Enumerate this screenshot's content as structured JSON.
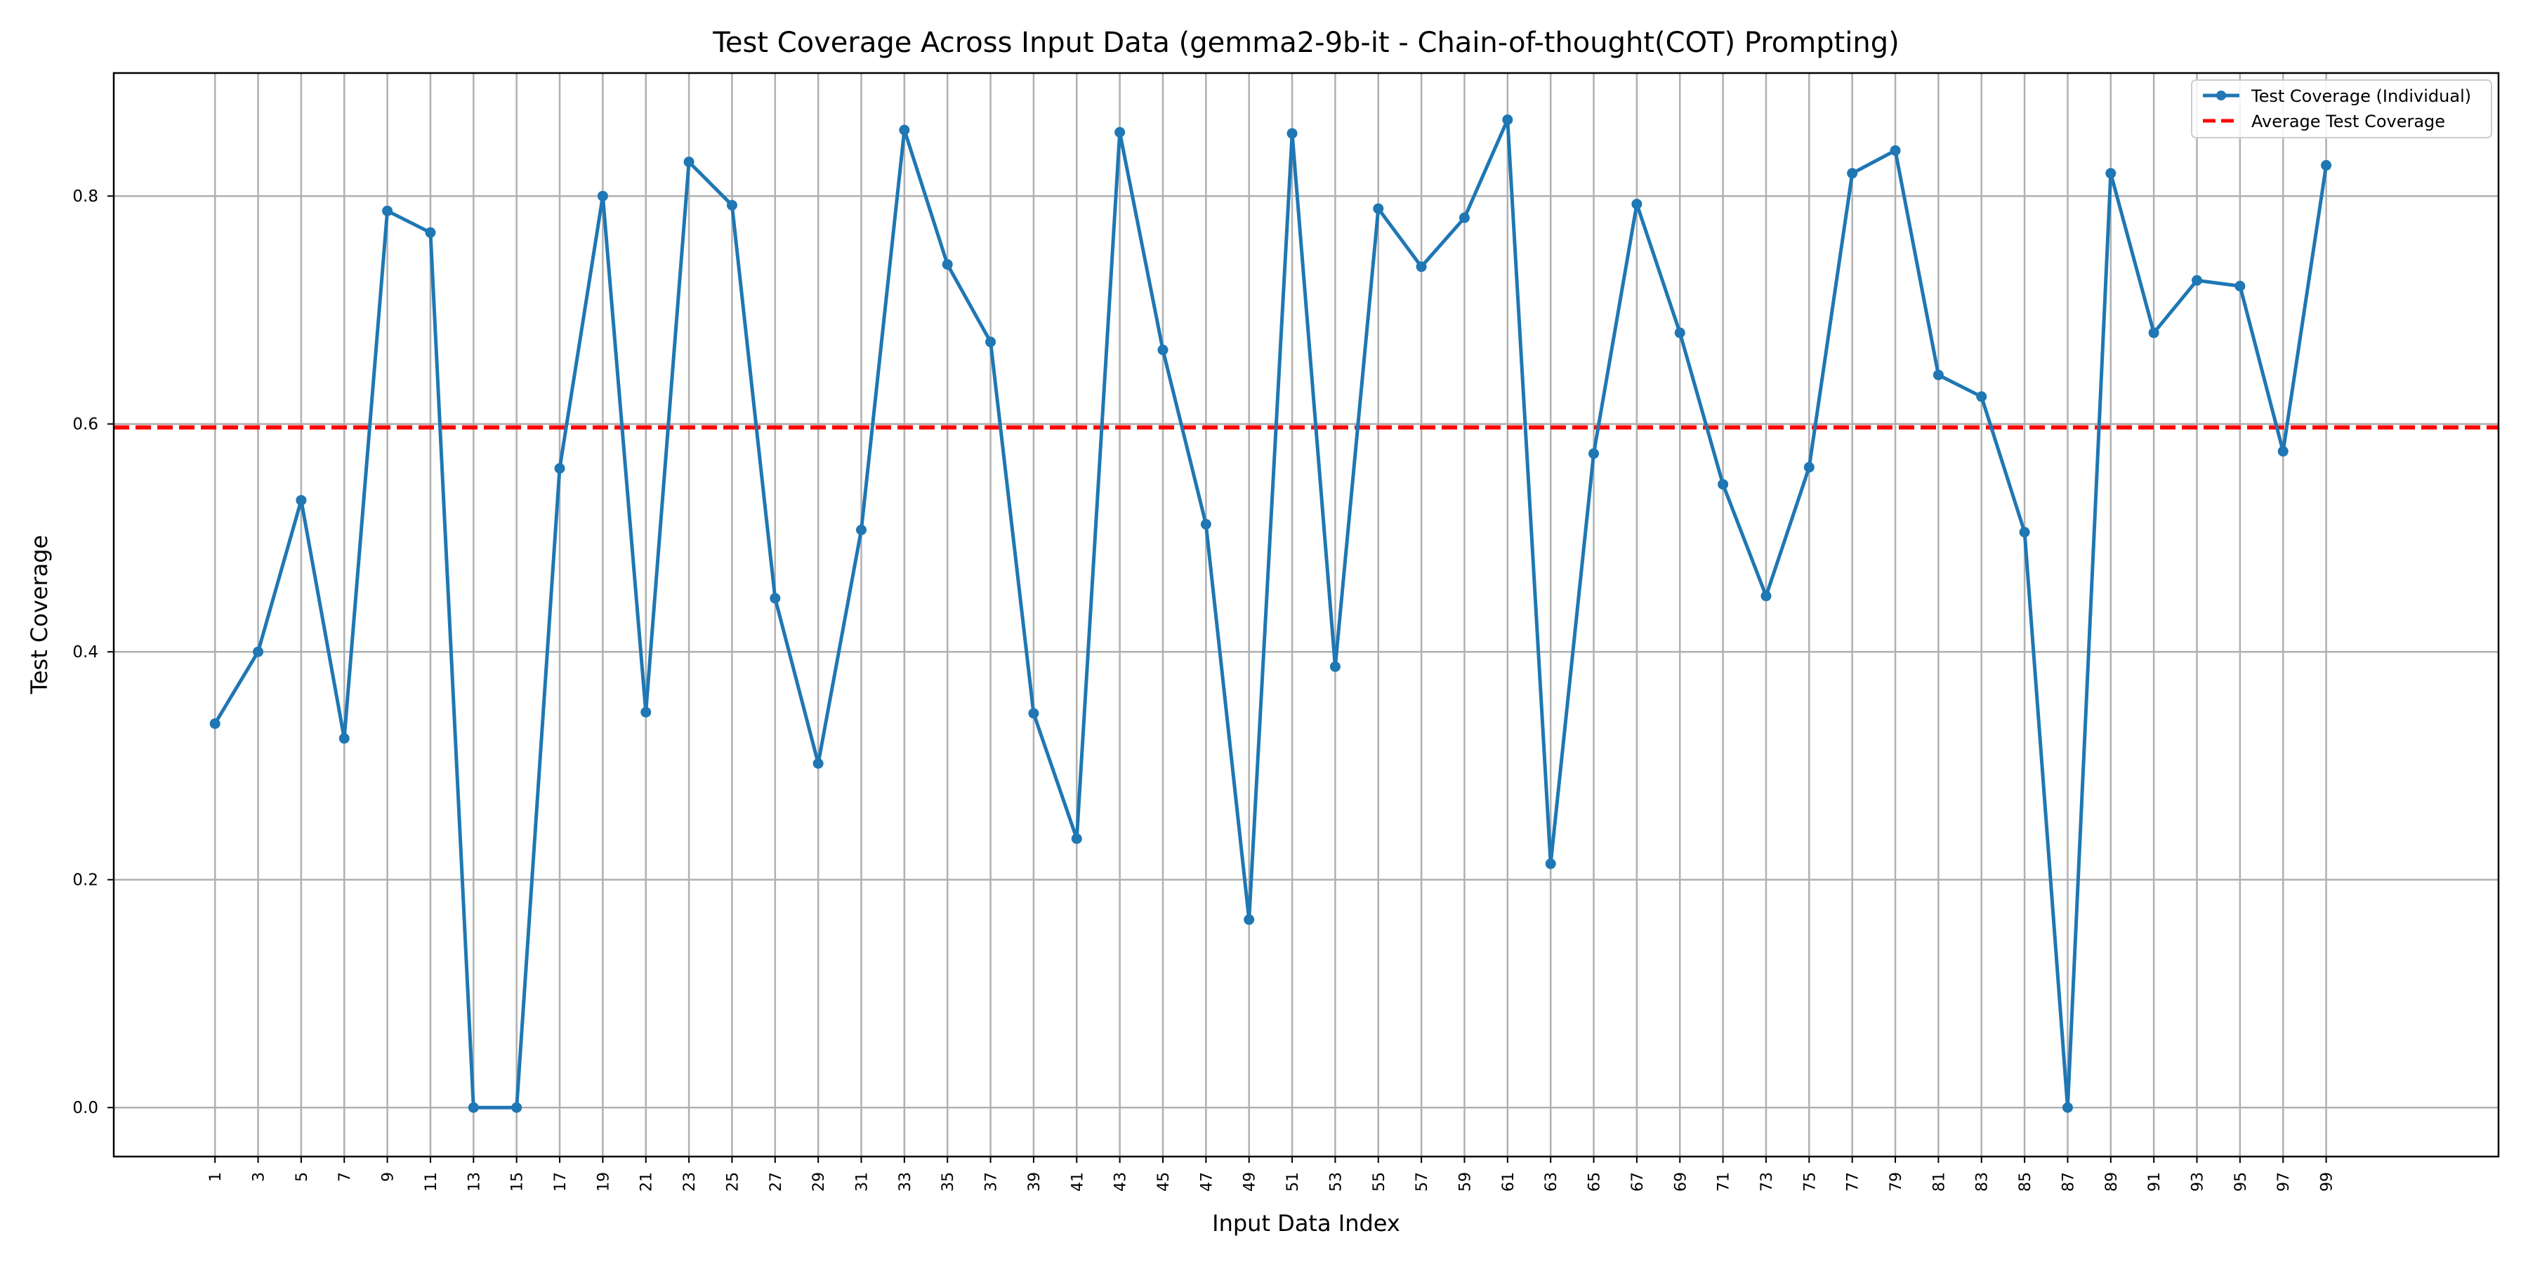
{
  "chart_data": {
    "type": "line",
    "title": "Test Coverage Across Input Data (gemma2-9b-it - Chain-of-thought(COT) Prompting)",
    "xlabel": "Input Data Index",
    "ylabel": "Test Coverage",
    "x": [
      1,
      3,
      5,
      7,
      9,
      11,
      13,
      15,
      17,
      19,
      21,
      23,
      25,
      27,
      29,
      31,
      33,
      35,
      37,
      39,
      41,
      43,
      45,
      47,
      49,
      51,
      53,
      55,
      57,
      59,
      61,
      63,
      65,
      67,
      69,
      71,
      73,
      75,
      77,
      79,
      81,
      83,
      85,
      87,
      89,
      91,
      93,
      95,
      97,
      99
    ],
    "x_tick_labels": [
      "1",
      "3",
      "5",
      "7",
      "9",
      "11",
      "13",
      "15",
      "17",
      "19",
      "21",
      "23",
      "25",
      "27",
      "29",
      "31",
      "33",
      "35",
      "37",
      "39",
      "41",
      "43",
      "45",
      "47",
      "49",
      "51",
      "53",
      "55",
      "57",
      "59",
      "61",
      "63",
      "65",
      "67",
      "69",
      "71",
      "73",
      "75",
      "77",
      "79",
      "81",
      "83",
      "85",
      "87",
      "89",
      "91",
      "93",
      "95",
      "97",
      "99"
    ],
    "xlim": [
      -3.7,
      107.0
    ],
    "y_ticks": [
      0.0,
      0.2,
      0.4,
      0.6,
      0.8
    ],
    "y_tick_labels": [
      "0.0",
      "0.2",
      "0.4",
      "0.6",
      "0.8"
    ],
    "ylim": [
      -0.043,
      0.908
    ],
    "grid": true,
    "legend_position": "top-right",
    "series": [
      {
        "name": "Test Coverage (Individual)",
        "color": "#1f77b4",
        "line_style": "solid",
        "marker": "circle",
        "values": [
          0.337,
          0.4,
          0.533,
          0.324,
          0.787,
          0.768,
          0.0,
          0.0,
          0.561,
          0.8,
          0.347,
          0.83,
          0.792,
          0.447,
          0.302,
          0.507,
          0.858,
          0.74,
          0.672,
          0.346,
          0.236,
          0.856,
          0.665,
          0.512,
          0.165,
          0.855,
          0.387,
          0.789,
          0.738,
          0.781,
          0.867,
          0.214,
          0.574,
          0.793,
          0.68,
          0.547,
          0.449,
          0.562,
          0.82,
          0.84,
          0.643,
          0.624,
          0.505,
          0.0,
          0.82,
          0.68,
          0.726,
          0.721,
          0.576,
          0.827
        ]
      },
      {
        "name": "Average Test Coverage",
        "color": "#ff0000",
        "line_style": "dashed",
        "value": 0.597
      }
    ]
  }
}
